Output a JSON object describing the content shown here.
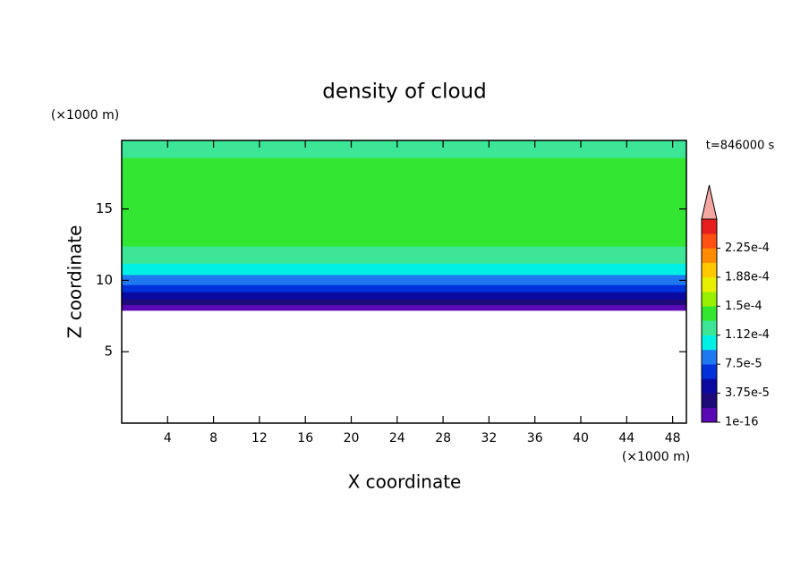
{
  "chart_data": {
    "type": "contour",
    "title": "density of cloud",
    "xlabel": "X coordinate",
    "ylabel": "Z coordinate",
    "xunit": "(×1000 m)",
    "yunit": "(×1000 m)",
    "time_label": "t=846000 s",
    "xlim": [
      0,
      49.2
    ],
    "ylim": [
      0,
      19.8
    ],
    "xticks": [
      4,
      8,
      12,
      16,
      20,
      24,
      28,
      32,
      36,
      40,
      44,
      48
    ],
    "yticks": [
      5,
      10,
      15
    ],
    "field": {
      "z": [
        7.9,
        8.3,
        8.7,
        9.2,
        9.7,
        10.4,
        11.2,
        12.4,
        18.6,
        19.8
      ],
      "values": [
        1e-05,
        2.5e-05,
        4.5e-05,
        6.5e-05,
        8.5e-05,
        0.0001,
        0.00012,
        0.00014,
        0.00012
      ]
    },
    "levels": [
      1e-16,
      1.875e-05,
      3.75e-05,
      5.625e-05,
      7.5e-05,
      9.375e-05,
      0.000112,
      0.00013125,
      0.00015,
      0.00016875,
      0.000188,
      0.00020625,
      0.000225,
      0.00024375
    ],
    "colors": [
      "#5a0ab4",
      "#1e0a78",
      "#0a0aa0",
      "#0032dc",
      "#1e78f0",
      "#00f0e6",
      "#3ce696",
      "#32e632",
      "#96f000",
      "#e6f000",
      "#ffc800",
      "#ff8c00",
      "#ff5014",
      "#e61e1e"
    ],
    "extend_color": "#f4a6a0",
    "colorbar_ticks": [
      {
        "value": 1e-16,
        "label": "1e-16"
      },
      {
        "value": 3.75e-05,
        "label": "3.75e-5"
      },
      {
        "value": 7.5e-05,
        "label": "7.5e-5"
      },
      {
        "value": 0.000112,
        "label": "1.12e-4"
      },
      {
        "value": 0.00015,
        "label": "1.5e-4"
      },
      {
        "value": 0.000188,
        "label": "1.88e-4"
      },
      {
        "value": 0.000225,
        "label": "2.25e-4"
      }
    ]
  }
}
